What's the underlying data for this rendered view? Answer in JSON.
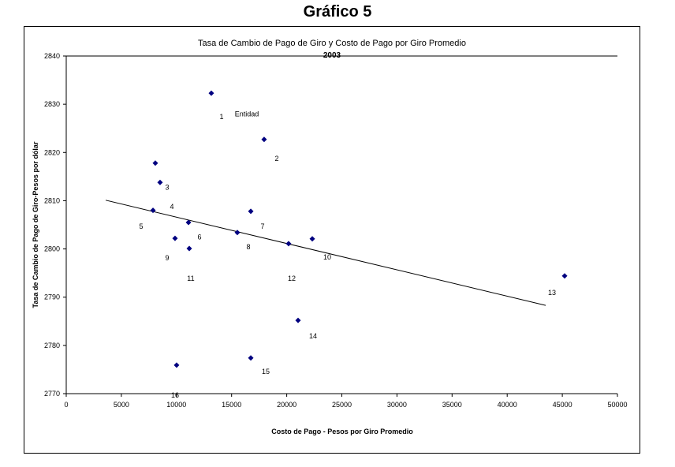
{
  "heading": "Gráfico 5",
  "chart_data": {
    "type": "scatter",
    "title": "Tasa de Cambio de Pago de Giro y Costo de Pago por Giro Promedio",
    "subtitle": "2003",
    "xlabel": "Costo de Pago - Pesos por Giro Promedio",
    "ylabel": "Tasa de Cambio de Pago de Giro-Pesos por dólar",
    "xlim": [
      0,
      50000
    ],
    "ylim": [
      2770,
      2840
    ],
    "xticks": [
      0,
      5000,
      10000,
      15000,
      20000,
      25000,
      30000,
      35000,
      40000,
      45000,
      50000
    ],
    "yticks": [
      2770,
      2780,
      2790,
      2800,
      2810,
      2820,
      2830,
      2840
    ],
    "marker_color": "#000080",
    "points": [
      {
        "x": 13160,
        "y": 2832.3
      },
      {
        "x": 17950,
        "y": 2822.7
      },
      {
        "x": 8080,
        "y": 2817.8
      },
      {
        "x": 8510,
        "y": 2813.8
      },
      {
        "x": 7870,
        "y": 2808.0
      },
      {
        "x": 11090,
        "y": 2805.5
      },
      {
        "x": 16740,
        "y": 2807.8
      },
      {
        "x": 15520,
        "y": 2803.4
      },
      {
        "x": 9870,
        "y": 2802.2
      },
      {
        "x": 11160,
        "y": 2800.1
      },
      {
        "x": 20170,
        "y": 2801.1
      },
      {
        "x": 22320,
        "y": 2802.1
      },
      {
        "x": 45210,
        "y": 2794.4
      },
      {
        "x": 21030,
        "y": 2785.2
      },
      {
        "x": 10010,
        "y": 2775.9
      },
      {
        "x": 16740,
        "y": 2777.4
      }
    ],
    "labels": [
      {
        "text": "1",
        "x": 14090,
        "y": 2827.4
      },
      {
        "text": "Entidad",
        "x": 16380,
        "y": 2828.0
      },
      {
        "text": "2",
        "x": 19100,
        "y": 2818.7
      },
      {
        "text": "3",
        "x": 9160,
        "y": 2812.8
      },
      {
        "text": "4",
        "x": 9590,
        "y": 2808.8
      },
      {
        "text": "5",
        "x": 6800,
        "y": 2804.7
      },
      {
        "text": "6",
        "x": 12090,
        "y": 2802.5
      },
      {
        "text": "7",
        "x": 17810,
        "y": 2804.7
      },
      {
        "text": "8",
        "x": 16520,
        "y": 2800.4
      },
      {
        "text": "9",
        "x": 9160,
        "y": 2798.1
      },
      {
        "text": "10",
        "x": 23680,
        "y": 2798.3
      },
      {
        "text": "11",
        "x": 11300,
        "y": 2793.9
      },
      {
        "text": "12",
        "x": 20460,
        "y": 2793.9
      },
      {
        "text": "13",
        "x": 44060,
        "y": 2790.9
      },
      {
        "text": "14",
        "x": 22390,
        "y": 2781.9
      },
      {
        "text": "15",
        "x": 18100,
        "y": 2774.6
      },
      {
        "text": "16",
        "x": 9870,
        "y": 2769.7
      }
    ],
    "trendline": {
      "type": "linear",
      "from": {
        "x": 3580,
        "y": 2810.1
      },
      "to": {
        "x": 43490,
        "y": 2788.3
      }
    },
    "grid": false,
    "legend": "none"
  }
}
